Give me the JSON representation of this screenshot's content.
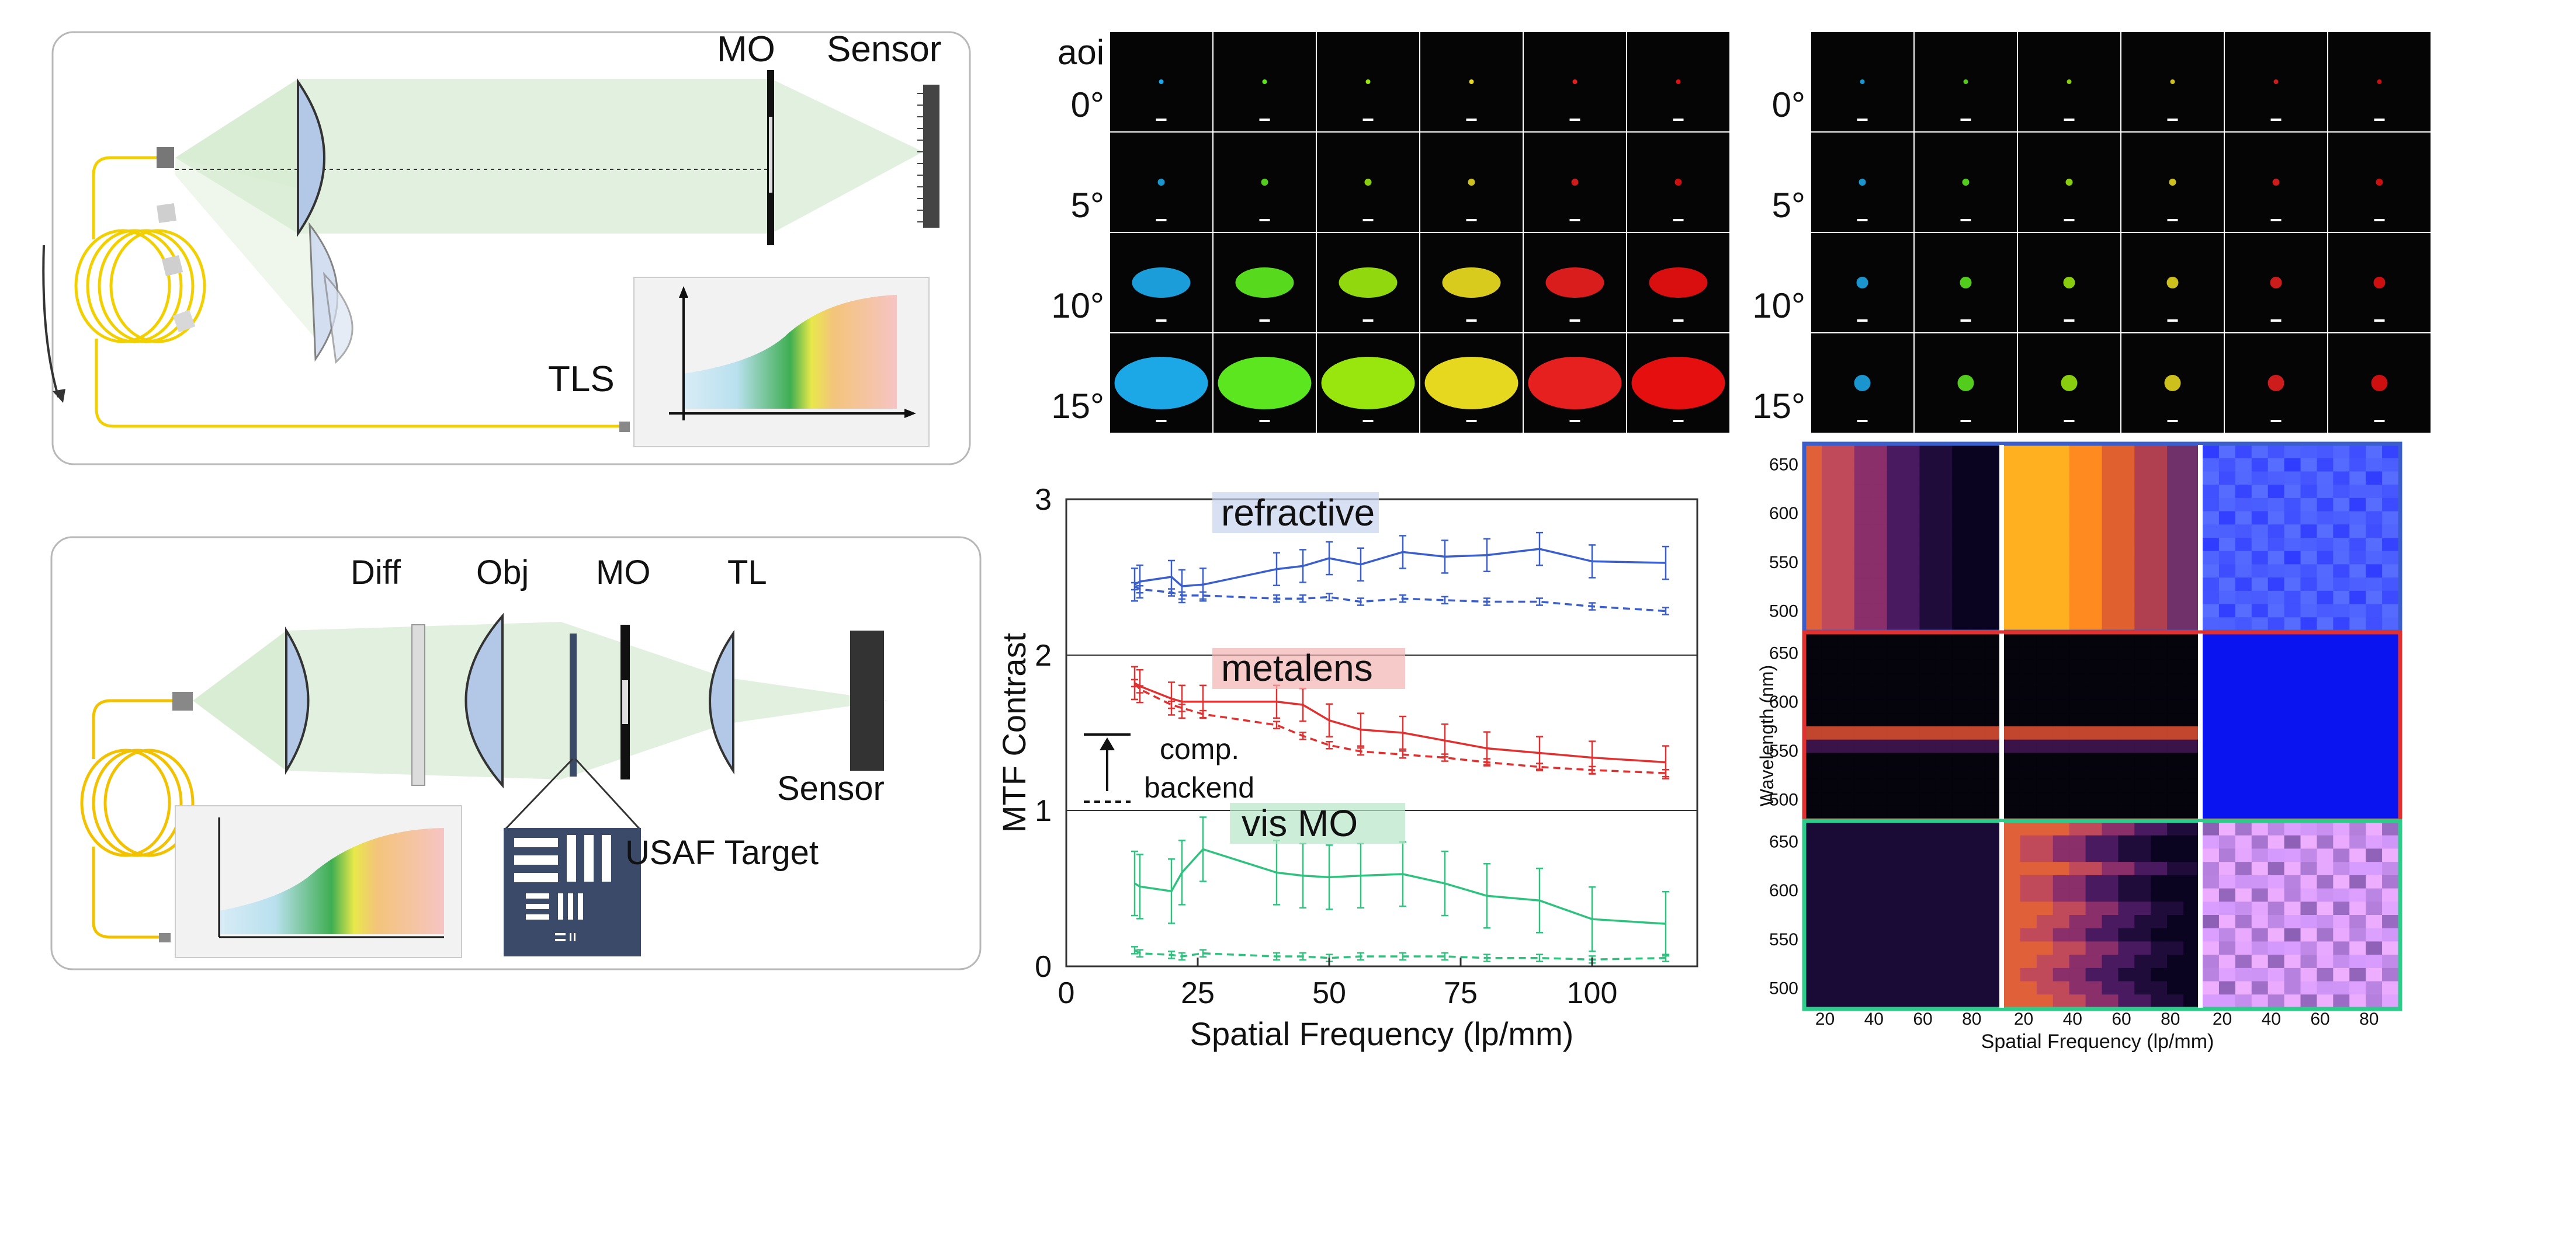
{
  "setup_top": {
    "labels": {
      "mo": "MO",
      "sensor": "Sensor",
      "tls": "TLS"
    }
  },
  "setup_bottom": {
    "labels": {
      "diff": "Diff",
      "obj": "Obj",
      "mo": "MO",
      "tl": "TL",
      "sensor": "Sensor",
      "usaf": "USAF Target"
    }
  },
  "psf_grids": {
    "aoi_header": "aoi",
    "rows": [
      "0°",
      "5°",
      "10°",
      "15°"
    ],
    "columns_colors": [
      "#1fb9ff",
      "#66ff22",
      "#aaff11",
      "#ffee22",
      "#ff2222",
      "#ff1111"
    ]
  },
  "mtf_chart": {
    "ylabel": "MTF Contrast",
    "xlabel": "Spatial Frequency (lp/mm)",
    "panel_labels": [
      "refractive",
      "metalens",
      "vis MO"
    ],
    "legend": {
      "comp": "comp.",
      "backend": "backend"
    },
    "colors": {
      "refractive": "#3a5fcd",
      "metalens": "#e03030",
      "vis_mo": "#2ec27e"
    }
  },
  "heatmaps": {
    "ylabel": "Wavelength (nm)",
    "xlabel": "Spatial Frequency (lp/mm)",
    "border_colors": [
      "#3a5fcd",
      "#e03030",
      "#2ecc8a"
    ]
  },
  "chart_data": {
    "type": "line",
    "xlabel": "Spatial Frequency (lp/mm)",
    "ylabel": "MTF Contrast",
    "xlim": [
      0,
      120
    ],
    "ylim": [
      0,
      3
    ],
    "x_ticks": [
      0,
      25,
      50,
      75,
      100
    ],
    "y_ticks": [
      0,
      1,
      2,
      3
    ],
    "x": [
      13,
      14,
      20,
      22,
      26,
      40,
      45,
      50,
      56,
      64,
      72,
      80,
      90,
      100,
      114
    ],
    "series": [
      {
        "name": "refractive",
        "style": "solid",
        "values": [
          2.45,
          2.47,
          2.5,
          2.44,
          2.45,
          2.55,
          2.57,
          2.62,
          2.58,
          2.66,
          2.63,
          2.64,
          2.68,
          2.6,
          2.59
        ]
      },
      {
        "name": "refractive",
        "style": "dashed",
        "values": [
          2.44,
          2.42,
          2.4,
          2.38,
          2.38,
          2.36,
          2.36,
          2.37,
          2.34,
          2.36,
          2.35,
          2.34,
          2.34,
          2.31,
          2.28
        ]
      },
      {
        "name": "metalens",
        "style": "solid",
        "values": [
          1.82,
          1.8,
          1.72,
          1.7,
          1.7,
          1.7,
          1.68,
          1.58,
          1.52,
          1.5,
          1.45,
          1.4,
          1.37,
          1.34,
          1.31
        ]
      },
      {
        "name": "metalens",
        "style": "dashed",
        "values": [
          1.82,
          1.78,
          1.68,
          1.66,
          1.62,
          1.55,
          1.48,
          1.42,
          1.38,
          1.36,
          1.34,
          1.31,
          1.28,
          1.26,
          1.24
        ]
      },
      {
        "name": "vis MO",
        "style": "solid",
        "values": [
          0.53,
          0.51,
          0.48,
          0.6,
          0.75,
          0.6,
          0.58,
          0.57,
          0.58,
          0.59,
          0.53,
          0.45,
          0.42,
          0.3,
          0.27
        ]
      },
      {
        "name": "vis MO",
        "style": "dashed",
        "values": [
          0.1,
          0.08,
          0.07,
          0.06,
          0.08,
          0.06,
          0.06,
          0.05,
          0.06,
          0.06,
          0.06,
          0.05,
          0.05,
          0.04,
          0.05
        ]
      }
    ],
    "heatmap_axes": {
      "y_ticks": [
        500,
        550,
        600,
        650
      ],
      "x_ticks": [
        20,
        40,
        60,
        80
      ]
    }
  }
}
